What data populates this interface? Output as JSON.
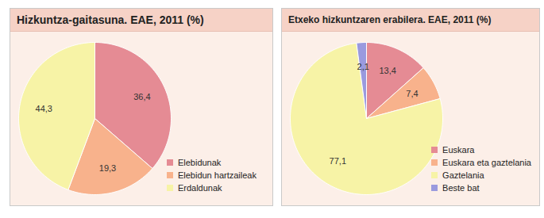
{
  "chart_data": [
    {
      "type": "pie",
      "title": "Hizkuntza-gaitasuna. EAE, 2011 (%)",
      "categories": [
        "Elebidunak",
        "Elebidun hartzaileak",
        "Erdaldunak"
      ],
      "values": [
        36.4,
        19.3,
        44.3
      ],
      "value_labels": [
        "36,4",
        "19,3",
        "44,3"
      ],
      "colors": [
        "#e58b94",
        "#f8b28c",
        "#f7f3a6"
      ],
      "data_labels": true,
      "legend": "bottom-right"
    },
    {
      "type": "pie",
      "title": "Etxeko hizkuntzaren erabilera. EAE, 2011 (%)",
      "categories": [
        "Euskara",
        "Euskara eta gaztelania",
        "Gaztelania",
        "Beste bat"
      ],
      "values": [
        13.4,
        7.4,
        77.1,
        2.1
      ],
      "value_labels": [
        "13,4",
        "7,4",
        "77,1",
        "2,1"
      ],
      "colors": [
        "#e58b94",
        "#f8b28c",
        "#f7f3a6",
        "#9a9ade"
      ],
      "data_labels": true,
      "legend": "bottom-right"
    }
  ]
}
